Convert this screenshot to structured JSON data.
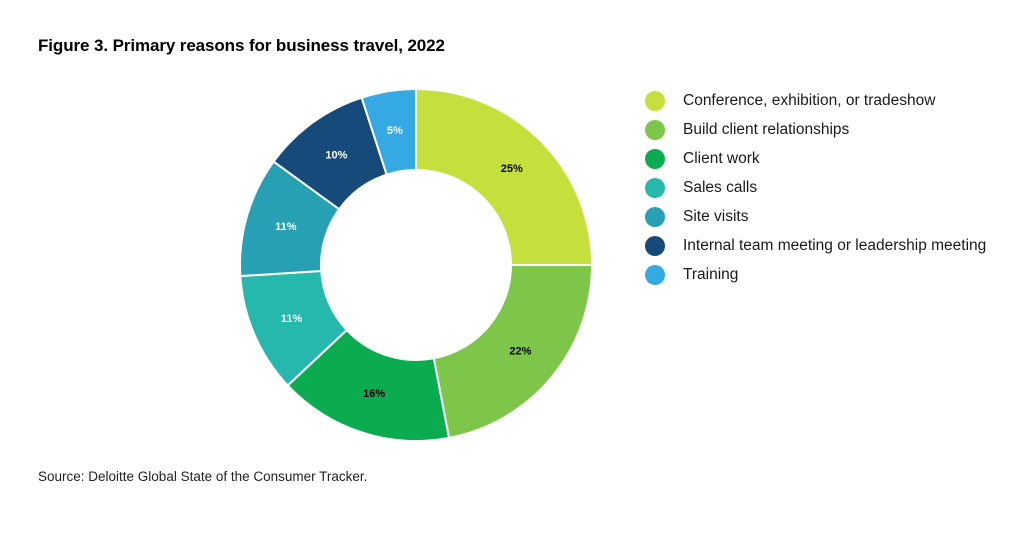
{
  "figure": {
    "title": "Figure 3. Primary reasons for business travel, 2022",
    "source": "Source: Deloitte Global State of the Consumer Tracker."
  },
  "chart_data": {
    "type": "pie",
    "donut": true,
    "legend_position": "right",
    "categories": [
      "Conference, exhibition, or tradeshow",
      "Build client relationships",
      "Client work",
      "Sales calls",
      "Site visits",
      "Internal team meeting or leadership meeting",
      "Training"
    ],
    "values": [
      25,
      22,
      16,
      11,
      11,
      10,
      5
    ],
    "labels": [
      "25%",
      "22%",
      "16%",
      "11%",
      "11%",
      "10%",
      "5%"
    ],
    "colors": [
      "#c5df3d",
      "#7dc64a",
      "#0bac50",
      "#27b8ad",
      "#27a0b4",
      "#164a7b",
      "#35a9e4"
    ],
    "label_colors": [
      "#000000",
      "#000000",
      "#000000",
      "#ffffff",
      "#ffffff",
      "#ffffff",
      "#ffffff"
    ]
  }
}
